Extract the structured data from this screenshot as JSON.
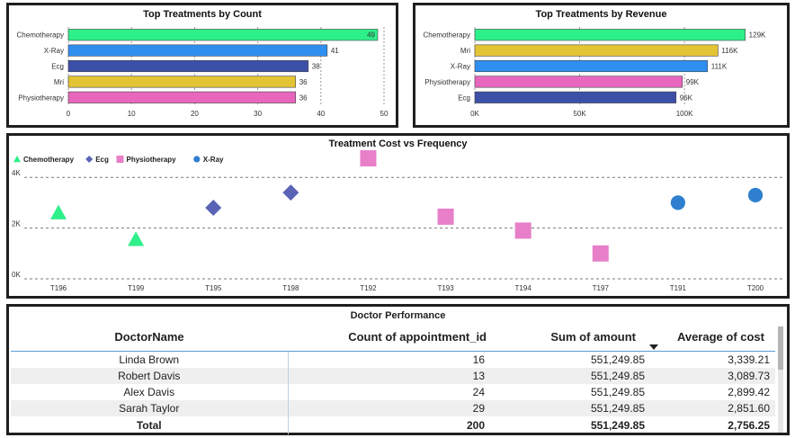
{
  "chart_data": [
    {
      "type": "bar",
      "orientation": "horizontal",
      "title": "Top Treatments by Count",
      "categories": [
        "Chemotherapy",
        "X-Ray",
        "Ecg",
        "Mri",
        "Physiotherapy"
      ],
      "values": [
        49,
        41,
        38,
        36,
        36
      ],
      "data_labels": [
        "49",
        "41",
        "38",
        "36",
        "36"
      ],
      "xticks": [
        "0",
        "10",
        "20",
        "30",
        "40",
        "50"
      ],
      "xlim": [
        0,
        50
      ],
      "grid": "vertical dashed",
      "colors": [
        "#2ef08a",
        "#2f8ff0",
        "#3d50a8",
        "#e3c434",
        "#e866bd"
      ]
    },
    {
      "type": "bar",
      "orientation": "horizontal",
      "title": "Top Treatments by Revenue",
      "categories": [
        "Chemotherapy",
        "Mri",
        "X-Ray",
        "Physiotherapy",
        "Ecg"
      ],
      "values": [
        129000,
        116000,
        111000,
        99000,
        96000
      ],
      "data_labels": [
        "129K",
        "116K",
        "111K",
        "99K",
        "96K"
      ],
      "xticks": [
        "0K",
        "50K",
        "100K"
      ],
      "xlim": [
        0,
        133000
      ],
      "grid": "vertical dashed",
      "colors": [
        "#2ef08a",
        "#e3c434",
        "#2f8ff0",
        "#e866bd",
        "#3d50a8"
      ]
    },
    {
      "type": "scatter",
      "title": "Treatment Cost vs Frequency",
      "legend_position": "top-left",
      "categories": [
        "T196",
        "T199",
        "T195",
        "T198",
        "T192",
        "T193",
        "T194",
        "T197",
        "T191",
        "T200"
      ],
      "yticks": [
        "0K",
        "2K",
        "4K"
      ],
      "ylim": [
        0,
        5000
      ],
      "grid": "horizontal dashed",
      "series": [
        {
          "name": "Chemotherapy",
          "marker": "triangle",
          "color": "#2ef08a",
          "points": [
            {
              "x": "T196",
              "y": 2600
            },
            {
              "x": "T199",
              "y": 1550
            }
          ]
        },
        {
          "name": "Ecg",
          "marker": "diamond",
          "color": "#5a63b5",
          "points": [
            {
              "x": "T195",
              "y": 2800
            },
            {
              "x": "T198",
              "y": 3400
            }
          ]
        },
        {
          "name": "Physiotherapy",
          "marker": "square",
          "color": "#e77fc9",
          "points": [
            {
              "x": "T192",
              "y": 4750
            },
            {
              "x": "T193",
              "y": 2450
            },
            {
              "x": "T194",
              "y": 1900
            },
            {
              "x": "T197",
              "y": 1000
            }
          ]
        },
        {
          "name": "X-Ray",
          "marker": "circle",
          "color": "#2e7fcf",
          "points": [
            {
              "x": "T191",
              "y": 3000
            },
            {
              "x": "T200",
              "y": 3300
            }
          ]
        }
      ]
    },
    {
      "type": "table",
      "title": "Doctor Performance",
      "columns": [
        "DoctorName",
        "Count of appointment_id",
        "Sum of amount",
        "Average of cost"
      ],
      "rows": [
        [
          "Linda Brown",
          "16",
          "551,249.85",
          "3,339.21"
        ],
        [
          "Robert Davis",
          "13",
          "551,249.85",
          "3,089.73"
        ],
        [
          "Alex Davis",
          "24",
          "551,249.85",
          "2,899.42"
        ],
        [
          "Sarah Taylor",
          "29",
          "551,249.85",
          "2,851.60"
        ]
      ],
      "total": [
        "Total",
        "200",
        "551,249.85",
        "2,756.25"
      ],
      "sorted_column": "Average of cost",
      "sort_direction": "descending"
    }
  ]
}
